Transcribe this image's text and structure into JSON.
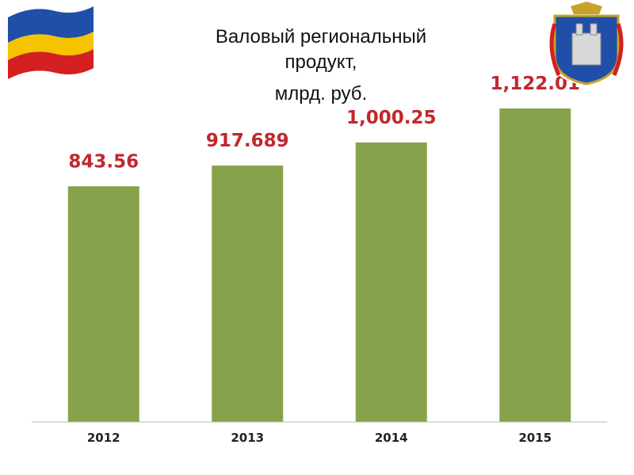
{
  "chart_data": {
    "type": "bar",
    "title": [
      "Валовый региональный",
      "продукт,",
      "млрд. руб."
    ],
    "categories": [
      "2012",
      "2013",
      "2014",
      "2015"
    ],
    "values": [
      843.56,
      917.689,
      1000.25,
      1122.01
    ],
    "value_labels": [
      "843.56",
      "917.689",
      "1,000.25",
      "1,122.01"
    ],
    "color": "#86a34c",
    "label_color": "#c0282d"
  }
}
